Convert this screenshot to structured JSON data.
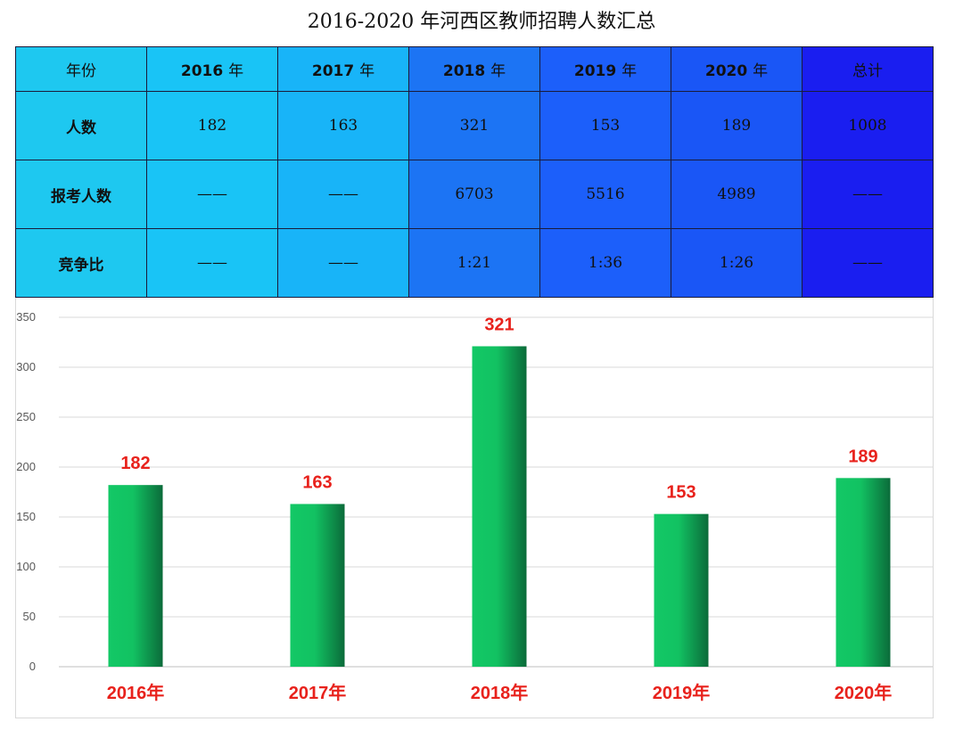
{
  "title": "2016-2020 年河西区教师招聘人数汇总",
  "table": {
    "header_label": "年份",
    "years": [
      {
        "year": "2016",
        "suffix": "年"
      },
      {
        "year": "2017",
        "suffix": "年"
      },
      {
        "year": "2018",
        "suffix": "年"
      },
      {
        "year": "2019",
        "suffix": "年"
      },
      {
        "year": "2020",
        "suffix": "年"
      }
    ],
    "total_label": "总计",
    "rows": [
      {
        "label": "人数",
        "cells": [
          "182",
          "163",
          "321",
          "153",
          "189",
          "1008"
        ]
      },
      {
        "label": "报考人数",
        "cells": [
          "——",
          "——",
          "6703",
          "5516",
          "4989",
          "——"
        ]
      },
      {
        "label": "竞争比",
        "cells": [
          "——",
          "——",
          "1:21",
          "1:36",
          "1:26",
          "——"
        ]
      }
    ],
    "column_colors": [
      "#1ec8f0",
      "#19c4f6",
      "#18b4f8",
      "#1c74f4",
      "#1c5ffa",
      "#1a56f6",
      "#1a1ef0"
    ]
  },
  "chart_data": {
    "type": "bar",
    "categories": [
      "2016年",
      "2017年",
      "2018年",
      "2019年",
      "2020年"
    ],
    "values": [
      182,
      163,
      321,
      153,
      189
    ],
    "data_labels": [
      "182",
      "163",
      "321",
      "153",
      "189"
    ],
    "ylim": [
      0,
      350
    ],
    "yticks": [
      0,
      50,
      100,
      150,
      200,
      250,
      300,
      350
    ],
    "grid": true,
    "bar_color_start": "#13c866",
    "bar_color_end": "#0b6b3a",
    "label_color": "#e8221c"
  }
}
